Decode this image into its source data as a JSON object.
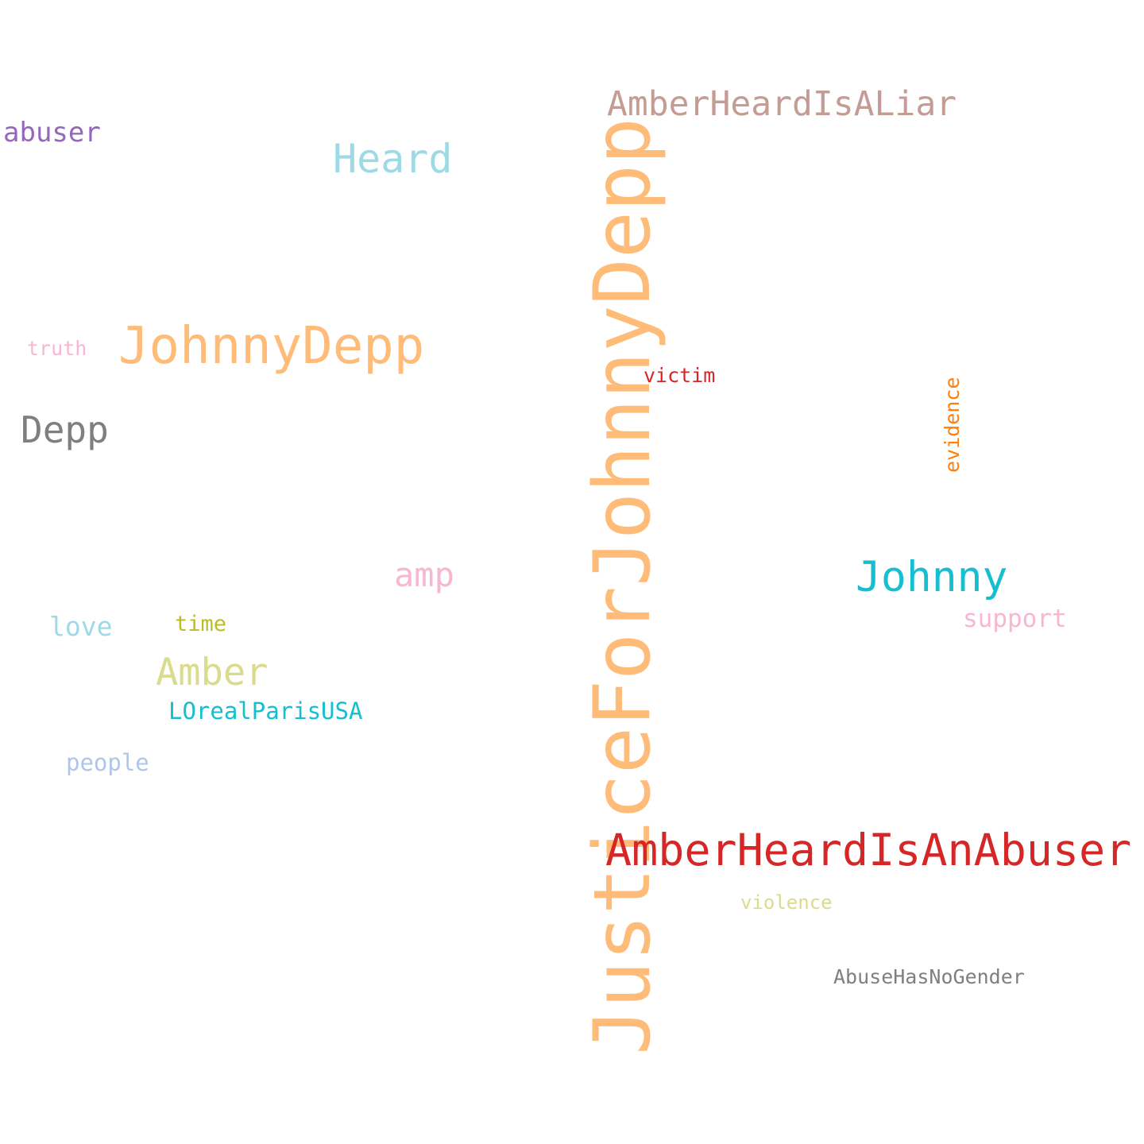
{
  "words": [
    {
      "id": "justice",
      "text": "JusticeForJohnnyDepp",
      "color": "#ffbb78",
      "orientation": "vertical"
    },
    {
      "id": "amberheardisanabuser",
      "text": "AmberHeardIsAnAbuser",
      "color": "#d62728",
      "orientation": "horizontal"
    },
    {
      "id": "amberheardisaliar",
      "text": "AmberHeardIsALiar",
      "color": "#c49c94",
      "orientation": "horizontal"
    },
    {
      "id": "johnnydepp",
      "text": "JohnnyDepp",
      "color": "#ffbb78",
      "orientation": "horizontal"
    },
    {
      "id": "johnny",
      "text": "Johnny",
      "color": "#17becf",
      "orientation": "horizontal"
    },
    {
      "id": "heard",
      "text": "Heard",
      "color": "#9edae5",
      "orientation": "horizontal"
    },
    {
      "id": "depp",
      "text": "Depp",
      "color": "#7f7f7f",
      "orientation": "horizontal"
    },
    {
      "id": "amber",
      "text": "Amber",
      "color": "#dbdb8d",
      "orientation": "horizontal"
    },
    {
      "id": "amp",
      "text": "amp",
      "color": "#f7b6d2",
      "orientation": "horizontal"
    },
    {
      "id": "abuser",
      "text": "abuser",
      "color": "#9467bd",
      "orientation": "horizontal"
    },
    {
      "id": "lorealparisusa",
      "text": "LOrealParisUSA",
      "color": "#17becf",
      "orientation": "horizontal"
    },
    {
      "id": "support",
      "text": "support",
      "color": "#f7b6d2",
      "orientation": "horizontal"
    },
    {
      "id": "love",
      "text": "love",
      "color": "#9edae5",
      "orientation": "horizontal"
    },
    {
      "id": "people",
      "text": "people",
      "color": "#aec7e8",
      "orientation": "horizontal"
    },
    {
      "id": "time",
      "text": "time",
      "color": "#bcbd22",
      "orientation": "horizontal"
    },
    {
      "id": "victim",
      "text": "victim",
      "color": "#d62728",
      "orientation": "horizontal"
    },
    {
      "id": "truth",
      "text": "truth",
      "color": "#f7b6d2",
      "orientation": "horizontal"
    },
    {
      "id": "evidence",
      "text": "evidence",
      "color": "#ff7f0e",
      "orientation": "vertical"
    },
    {
      "id": "violence",
      "text": "violence",
      "color": "#dbdb8d",
      "orientation": "horizontal"
    },
    {
      "id": "abusehasnogender",
      "text": "AbuseHasNoGender",
      "color": "#7f7f7f",
      "orientation": "horizontal"
    }
  ]
}
